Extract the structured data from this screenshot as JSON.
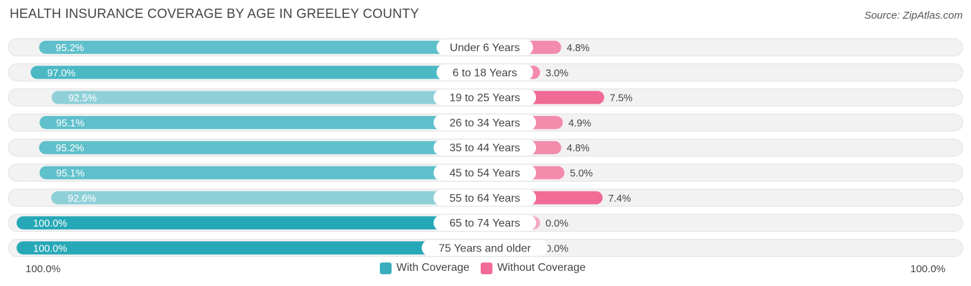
{
  "header": {
    "title": "HEALTH INSURANCE COVERAGE BY AGE IN GREELEY COUNTY",
    "source": "Source: ZipAtlas.com"
  },
  "colors": {
    "with_coverage": "#4bb8c4",
    "with_coverage_full": "#27a8b7",
    "without_coverage": "#f06b95",
    "without_coverage_light": "#f6a9c3",
    "row_bg": "#f2f2f2"
  },
  "legend": {
    "with_label": "With Coverage",
    "without_label": "Without Coverage"
  },
  "axis": {
    "left_label": "100.0%",
    "right_label": "100.0%"
  },
  "chart_data": {
    "type": "bar",
    "orientation": "horizontal-diverging",
    "title": "HEALTH INSURANCE COVERAGE BY AGE IN GREELEY COUNTY",
    "categories": [
      "Under 6 Years",
      "6 to 18 Years",
      "19 to 25 Years",
      "26 to 34 Years",
      "35 to 44 Years",
      "45 to 54 Years",
      "55 to 64 Years",
      "65 to 74 Years",
      "75 Years and older"
    ],
    "series": [
      {
        "name": "With Coverage",
        "values": [
          95.2,
          97.0,
          92.5,
          95.1,
          95.2,
          95.1,
          92.6,
          100.0,
          100.0
        ],
        "labels": [
          "95.2%",
          "97.0%",
          "92.5%",
          "95.1%",
          "95.2%",
          "95.1%",
          "92.6%",
          "100.0%",
          "100.0%"
        ]
      },
      {
        "name": "Without Coverage",
        "values": [
          4.8,
          3.0,
          7.5,
          4.9,
          4.8,
          5.0,
          7.4,
          0.0,
          0.0
        ],
        "labels": [
          "4.8%",
          "3.0%",
          "7.5%",
          "4.9%",
          "4.8%",
          "5.0%",
          "7.4%",
          "0.0%",
          "0.0%"
        ]
      }
    ],
    "xlim": [
      -100,
      100
    ],
    "legend_position": "bottom-center"
  }
}
